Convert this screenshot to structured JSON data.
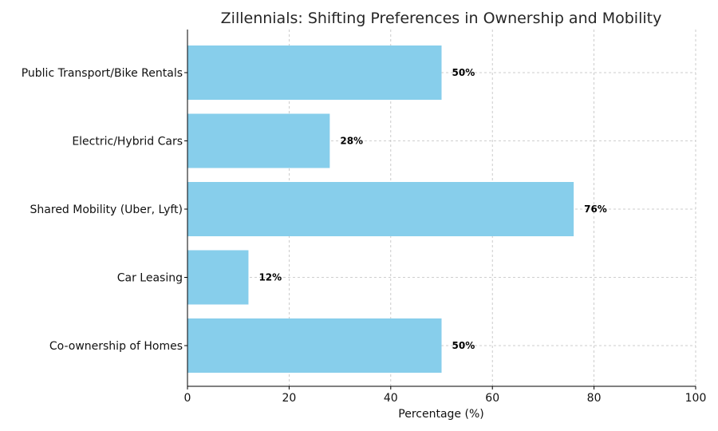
{
  "chart_data": {
    "type": "bar",
    "orientation": "horizontal",
    "title": "Zillennials: Shifting Preferences in Ownership and Mobility",
    "xlabel": "Percentage (%)",
    "ylabel": "",
    "xlim": [
      0,
      100
    ],
    "xticks": [
      0,
      20,
      40,
      60,
      80,
      100
    ],
    "grid": true,
    "bar_color": "#87CEEB",
    "categories": [
      "Co-ownership of Homes",
      "Car Leasing",
      "Shared Mobility (Uber, Lyft)",
      "Electric/Hybrid Cars",
      "Public Transport/Bike Rentals"
    ],
    "values": [
      50,
      12,
      76,
      28,
      50
    ],
    "value_labels": [
      "50%",
      "12%",
      "76%",
      "28%",
      "50%"
    ]
  }
}
